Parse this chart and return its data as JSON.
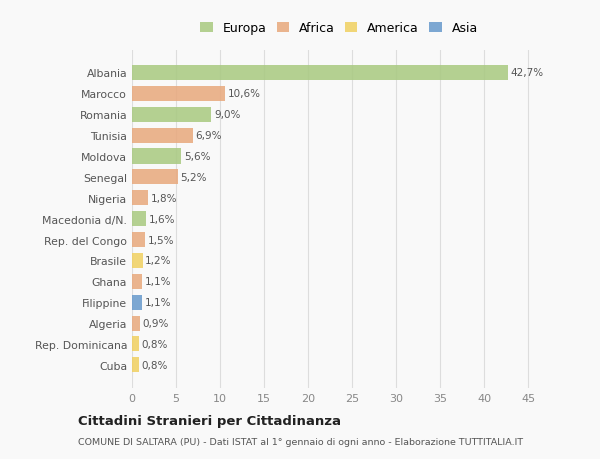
{
  "categories": [
    "Albania",
    "Marocco",
    "Romania",
    "Tunisia",
    "Moldova",
    "Senegal",
    "Nigeria",
    "Macedonia d/N.",
    "Rep. del Congo",
    "Brasile",
    "Ghana",
    "Filippine",
    "Algeria",
    "Rep. Dominicana",
    "Cuba"
  ],
  "values": [
    42.7,
    10.6,
    9.0,
    6.9,
    5.6,
    5.2,
    1.8,
    1.6,
    1.5,
    1.2,
    1.1,
    1.1,
    0.9,
    0.8,
    0.8
  ],
  "labels": [
    "42,7%",
    "10,6%",
    "9,0%",
    "6,9%",
    "5,6%",
    "5,2%",
    "1,8%",
    "1,6%",
    "1,5%",
    "1,2%",
    "1,1%",
    "1,1%",
    "0,9%",
    "0,8%",
    "0,8%"
  ],
  "continents": [
    "Europa",
    "Africa",
    "Europa",
    "Africa",
    "Europa",
    "Africa",
    "Africa",
    "Europa",
    "Africa",
    "America",
    "Africa",
    "Asia",
    "Africa",
    "America",
    "America"
  ],
  "colors": {
    "Europa": "#a8c97f",
    "Africa": "#e8a87c",
    "America": "#f0d060",
    "Asia": "#6699cc"
  },
  "title": "Cittadini Stranieri per Cittadinanza",
  "subtitle": "COMUNE DI SALTARA (PU) - Dati ISTAT al 1° gennaio di ogni anno - Elaborazione TUTTITALIA.IT",
  "xlim": [
    0,
    47
  ],
  "xticks": [
    0,
    5,
    10,
    15,
    20,
    25,
    30,
    35,
    40,
    45
  ],
  "background_color": "#f9f9f9",
  "grid_color": "#dddddd",
  "bar_alpha": 0.85,
  "bar_height": 0.72
}
